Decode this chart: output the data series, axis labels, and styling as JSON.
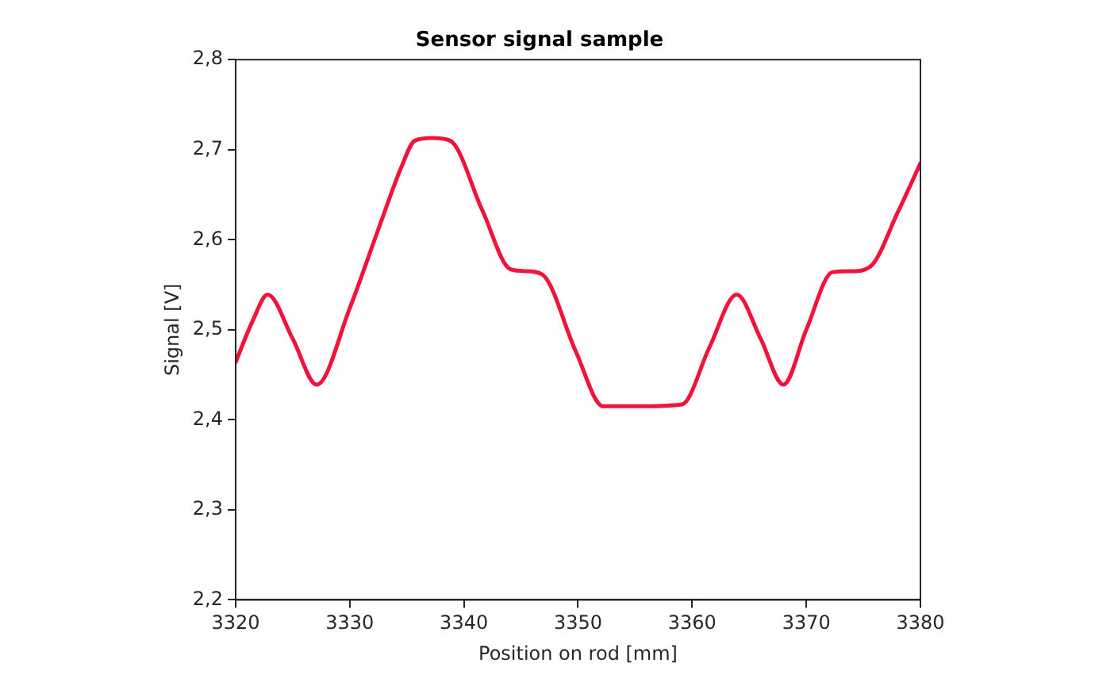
{
  "chart_data": {
    "type": "line",
    "title": "Sensor signal sample",
    "xlabel": "Position on rod [mm]",
    "ylabel": "Signal [V]",
    "series": [
      {
        "color": "#f0143c",
        "x": [
          3320,
          3321.5,
          3322.8,
          3325,
          3327.1,
          3330,
          3332.6,
          3334.5,
          3335.7,
          3337.2,
          3338.8,
          3341.6,
          3344.1,
          3345.5,
          3346.9,
          3349.8,
          3352.2,
          3355.5,
          3359.1,
          3361.5,
          3363.9,
          3366,
          3368,
          3370,
          3372.3,
          3374,
          3375.6,
          3378,
          3380
        ],
        "values": [
          2.464,
          2.51,
          2.539,
          2.49,
          2.439,
          2.524,
          2.615,
          2.68,
          2.71,
          2.713,
          2.71,
          2.633,
          2.567,
          2.565,
          2.561,
          2.476,
          2.415,
          2.415,
          2.417,
          2.48,
          2.539,
          2.49,
          2.439,
          2.5,
          2.564,
          2.565,
          2.57,
          2.63,
          2.685
        ]
      }
    ],
    "xlim": [
      3320,
      3380
    ],
    "xticks": [
      3320,
      3330,
      3340,
      3350,
      3360,
      3370,
      3380
    ],
    "ylim": [
      2.2,
      2.8
    ],
    "yticks": [
      {
        "value": 2.2,
        "label": "2,2"
      },
      {
        "value": 2.3,
        "label": "2,3"
      },
      {
        "value": 2.4,
        "label": "2,4"
      },
      {
        "value": 2.5,
        "label": "2,5"
      },
      {
        "value": 2.6,
        "label": "2,6"
      },
      {
        "value": 2.7,
        "label": "2,7"
      },
      {
        "value": 2.8,
        "label": "2,8"
      }
    ],
    "grid": false,
    "legend": false,
    "marker": "none",
    "line_style": "solid"
  }
}
